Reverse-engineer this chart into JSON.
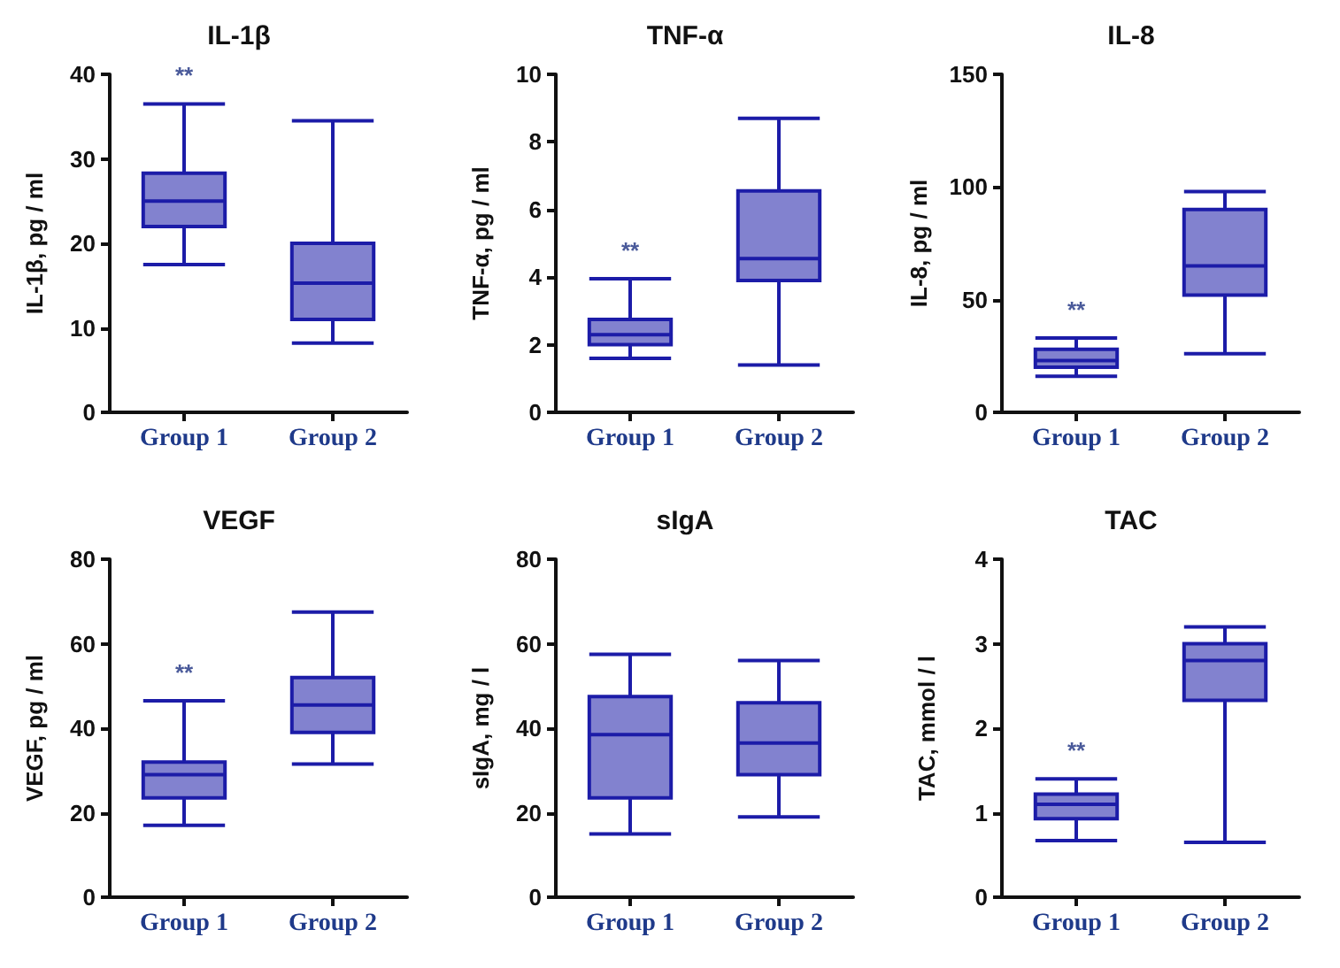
{
  "chart_data": [
    {
      "type": "box",
      "title": "IL-1β",
      "ylabel": "IL-1β, pg / ml",
      "categories": [
        "Group 1",
        "Group 2"
      ],
      "color": "#1c1ca8",
      "grid": false,
      "ylim": [
        0,
        40
      ],
      "yticks": [
        0,
        10,
        20,
        30,
        40
      ],
      "boxes": [
        {
          "low": 17.5,
          "q1": 22,
          "median": 25,
          "q3": 28.3,
          "high": 36.5
        },
        {
          "low": 8.2,
          "q1": 11,
          "median": 15.3,
          "q3": 20,
          "high": 34.5
        }
      ],
      "annotations": [
        "**"
      ]
    },
    {
      "type": "box",
      "title": "TNF-α",
      "ylabel": "TNF-α, pg / ml",
      "categories": [
        "Group 1",
        "Group 2"
      ],
      "color": "#1c1ca8",
      "grid": false,
      "ylim": [
        0,
        10
      ],
      "yticks": [
        0,
        2,
        4,
        6,
        8,
        10
      ],
      "boxes": [
        {
          "low": 1.6,
          "q1": 2.0,
          "median": 2.3,
          "q3": 2.75,
          "high": 3.95
        },
        {
          "low": 1.4,
          "q1": 3.9,
          "median": 4.55,
          "q3": 6.55,
          "high": 8.7
        }
      ],
      "annotations": [
        "**"
      ]
    },
    {
      "type": "box",
      "title": "IL-8",
      "ylabel": "IL-8, pg / ml",
      "categories": [
        "Group 1",
        "Group 2"
      ],
      "color": "#1c1ca8",
      "grid": false,
      "ylim": [
        0,
        150
      ],
      "yticks": [
        0,
        50,
        100,
        150
      ],
      "boxes": [
        {
          "low": 16,
          "q1": 20,
          "median": 23,
          "q3": 28,
          "high": 33
        },
        {
          "low": 26,
          "q1": 52,
          "median": 65,
          "q3": 90,
          "high": 98
        }
      ],
      "annotations": [
        "**"
      ]
    },
    {
      "type": "box",
      "title": "VEGF",
      "ylabel": "VEGF, pg / ml",
      "categories": [
        "Group 1",
        "Group 2"
      ],
      "color": "#1c1ca8",
      "grid": false,
      "ylim": [
        0,
        80
      ],
      "yticks": [
        0,
        20,
        40,
        60,
        80
      ],
      "boxes": [
        {
          "low": 17,
          "q1": 23.5,
          "median": 29,
          "q3": 32,
          "high": 46.5
        },
        {
          "low": 31.5,
          "q1": 39,
          "median": 45.5,
          "q3": 52,
          "high": 67.5
        }
      ],
      "annotations": [
        "**"
      ]
    },
    {
      "type": "box",
      "title": "sIgA",
      "ylabel": "sIgA, mg / l",
      "categories": [
        "Group 1",
        "Group 2"
      ],
      "color": "#1c1ca8",
      "grid": false,
      "ylim": [
        0,
        80
      ],
      "yticks": [
        0,
        20,
        40,
        60,
        80
      ],
      "boxes": [
        {
          "low": 15,
          "q1": 23.5,
          "median": 38.5,
          "q3": 47.5,
          "high": 57.5
        },
        {
          "low": 19,
          "q1": 29,
          "median": 36.5,
          "q3": 46,
          "high": 56
        }
      ]
    },
    {
      "type": "box",
      "title": "TAC",
      "ylabel": "TAC, mmol / l",
      "categories": [
        "Group 1",
        "Group 2"
      ],
      "color": "#1c1ca8",
      "grid": false,
      "ylim": [
        0,
        4
      ],
      "yticks": [
        0,
        1,
        2,
        3,
        4
      ],
      "boxes": [
        {
          "low": 0.67,
          "q1": 0.93,
          "median": 1.1,
          "q3": 1.22,
          "high": 1.4
        },
        {
          "low": 0.65,
          "q1": 2.33,
          "median": 2.8,
          "q3": 3.0,
          "high": 3.2
        }
      ],
      "annotations": [
        "**"
      ]
    }
  ]
}
